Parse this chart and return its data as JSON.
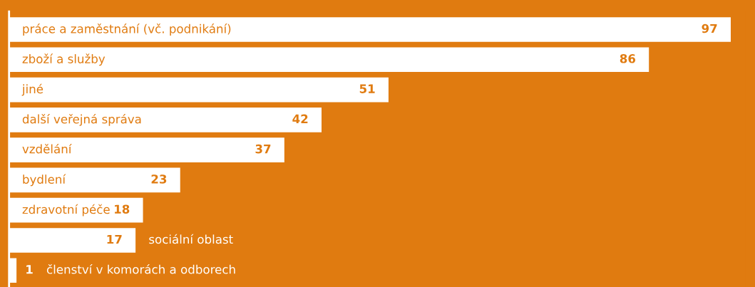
{
  "chart_data": {
    "type": "bar",
    "orientation": "horizontal",
    "categories": [
      "práce a zaměstnání (vč. podnikání)",
      "zboží a služby",
      "jiné",
      "další veřejná správa",
      "vzdělání",
      "bydlení",
      "zdravotní péče",
      "sociální oblast",
      "členství v komorách a odborech"
    ],
    "values": [
      97,
      86,
      51,
      42,
      37,
      23,
      18,
      17,
      1
    ],
    "color": "#ffffff",
    "data_labels": true
  }
}
